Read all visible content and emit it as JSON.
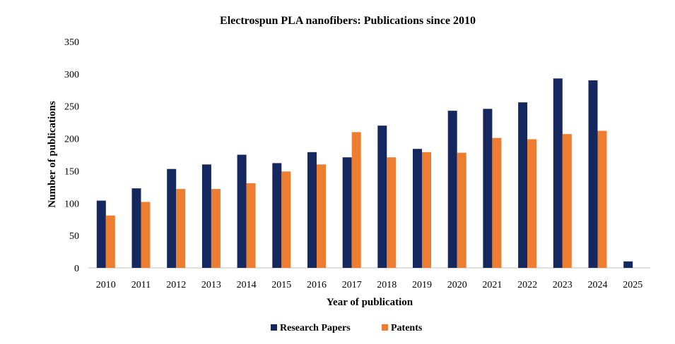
{
  "chart_data": {
    "type": "bar",
    "title": "Electrospun PLA nanofibers: Publications since 2010",
    "xlabel": "Year of publication",
    "ylabel": "Number of publications",
    "ylim": [
      0,
      350
    ],
    "yticks": [
      "0",
      "50",
      "100",
      "150",
      "200",
      "250",
      "300",
      "350"
    ],
    "grid": false,
    "legend_position": "bottom-center",
    "categories": [
      "2010",
      "2011",
      "2012",
      "2013",
      "2014",
      "2015",
      "2016",
      "2017",
      "2018",
      "2019",
      "2020",
      "2021",
      "2022",
      "2023",
      "2024",
      "2025"
    ],
    "series": [
      {
        "name": "Research Papers",
        "color": "#14285f",
        "values": [
          104,
          123,
          153,
          160,
          175,
          162,
          179,
          171,
          220,
          184,
          243,
          246,
          256,
          293,
          290,
          10
        ]
      },
      {
        "name": "Patents",
        "color": "#ed7d31",
        "values": [
          81,
          102,
          122,
          122,
          131,
          149,
          160,
          210,
          171,
          179,
          178,
          201,
          199,
          207,
          212,
          null
        ]
      }
    ]
  }
}
